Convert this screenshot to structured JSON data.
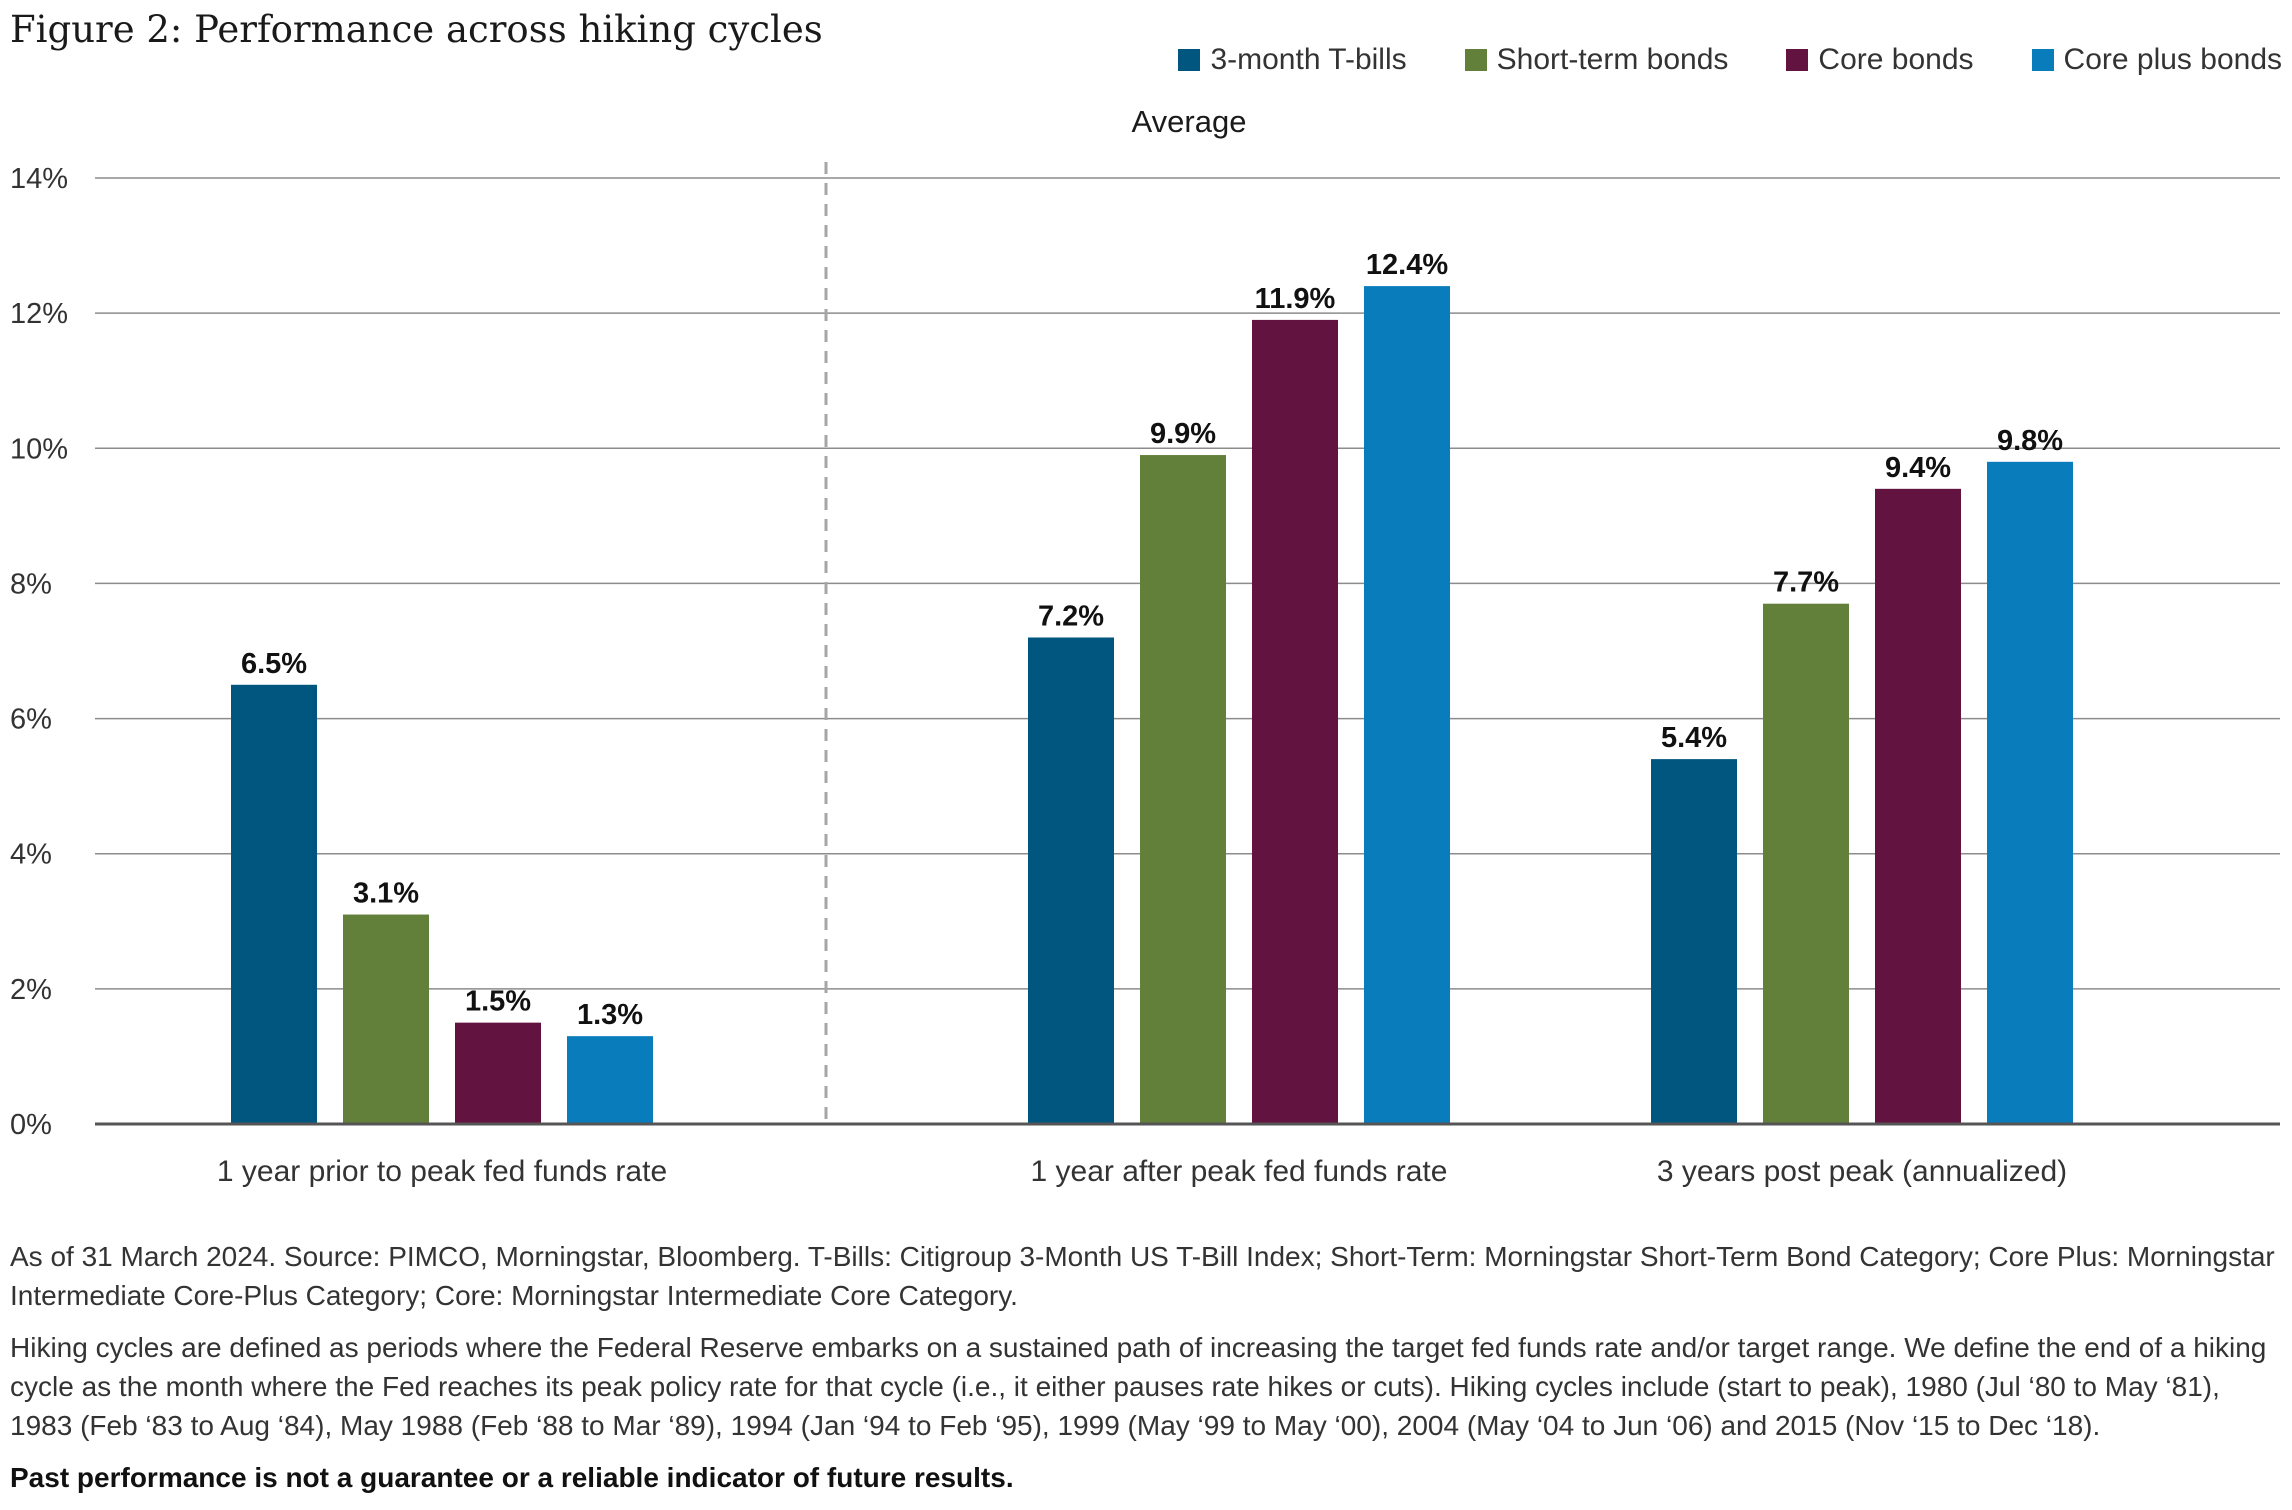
{
  "title": "Figure 2: Performance across hiking cycles",
  "chart_data": {
    "type": "bar",
    "title": "Figure 2: Performance across hiking cycles",
    "subtitle": "Average",
    "categories": [
      "1 year prior to peak fed funds rate",
      "1 year after peak fed funds rate",
      "3 years post peak (annualized)"
    ],
    "series": [
      {
        "name": "3-month T-bills",
        "color": "#00567e",
        "values": [
          6.5,
          7.2,
          5.4
        ],
        "labels": [
          "6.5%",
          "7.2%",
          "5.4%"
        ]
      },
      {
        "name": "Short-term bonds",
        "color": "#63803a",
        "values": [
          3.1,
          9.9,
          7.7
        ],
        "labels": [
          "3.1%",
          "9.9%",
          "7.7%"
        ]
      },
      {
        "name": "Core bonds",
        "color": "#621340",
        "values": [
          1.5,
          11.9,
          9.4
        ],
        "labels": [
          "1.5%",
          "11.9%",
          "9.4%"
        ]
      },
      {
        "name": "Core plus bonds",
        "color": "#097cbc",
        "values": [
          1.3,
          12.4,
          9.8
        ],
        "labels": [
          "1.3%",
          "12.4%",
          "9.8%"
        ]
      }
    ],
    "ylim": [
      0,
      14
    ],
    "yticks": [
      "0%",
      "2%",
      "4%",
      "6%",
      "8%",
      "10%",
      "12%",
      "14%"
    ],
    "grid": true,
    "legend": "top-right",
    "divider": "dashed line between first and second category"
  },
  "notes": [
    "As of 31 March 2024. Source: PIMCO, Morningstar, Bloomberg. T-Bills: Citigroup 3-Month US T-Bill Index; Short-Term: Morningstar Short-Term Bond Category; Core Plus: Morningstar Intermediate Core-Plus Category; Core: Morningstar Intermediate Core Category.",
    "Hiking cycles are defined as periods where the Federal Reserve embarks on a sustained path of increasing the target fed funds rate and/or target range. We define the end of a hiking cycle as the month where the Fed reaches its peak policy rate for that cycle (i.e., it either pauses rate hikes or cuts). Hiking cycles include (start to peak), 1980 (Jul ‘80 to May ‘81), 1983 (Feb ‘83 to Aug ‘84), May 1988 (Feb ‘88 to Mar ‘89), 1994 (Jan ‘94 to Feb ‘95), 1999 (May ‘99 to May ‘00), 2004 (May ‘04 to Jun ‘06) and 2015 (Nov ‘15 to Dec ‘18).",
    "Past performance is not a guarantee or a reliable indicator of future results."
  ]
}
